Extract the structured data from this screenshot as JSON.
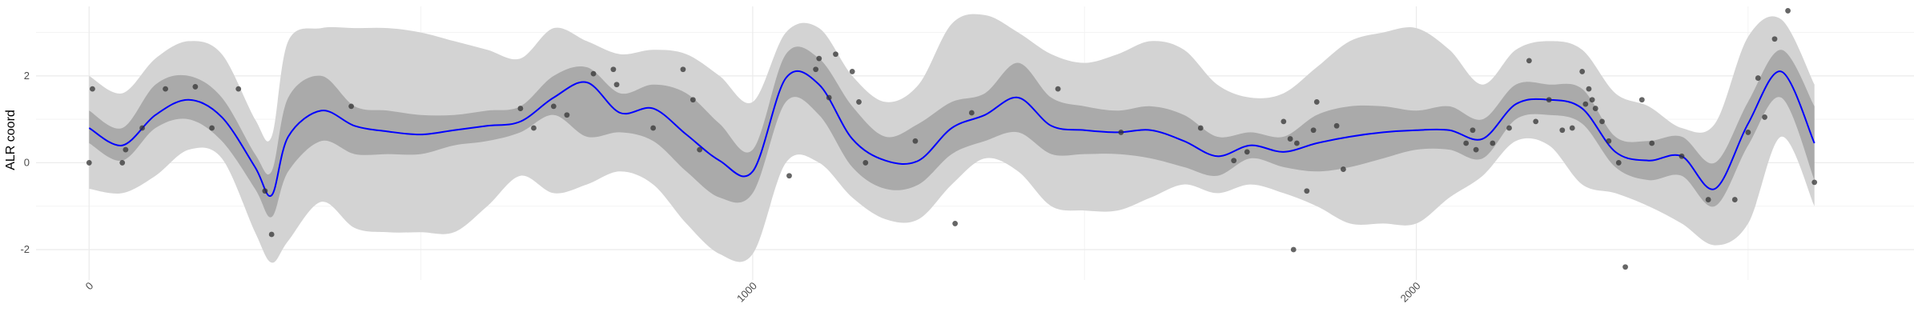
{
  "chart_data": {
    "type": "line",
    "title": "",
    "xlabel": "",
    "ylabel": "ALR coord",
    "xlim": [
      -80,
      2750
    ],
    "ylim": [
      -2.7,
      3.6
    ],
    "x_ticks": [
      0,
      1000,
      2000
    ],
    "x_tick_labels": [
      "0",
      "1000",
      "2000"
    ],
    "y_ticks": [
      -2,
      0,
      2
    ],
    "y_tick_labels": [
      "-2",
      "0",
      "2"
    ],
    "grid": true,
    "legend": "none",
    "colors": {
      "mean_line": "#0000ff",
      "inner_band": "#aaaaaa",
      "outer_band": "#d3d3d3",
      "points": "#333333",
      "grid": "#ebebeb"
    },
    "series": [
      {
        "type": "band",
        "role": "outer",
        "x": [
          0,
          50,
          100,
          150,
          200,
          250,
          275,
          300,
          350,
          400,
          450,
          500,
          550,
          600,
          650,
          700,
          750,
          800,
          850,
          900,
          950,
          1000,
          1050,
          1100,
          1150,
          1200,
          1250,
          1300,
          1350,
          1400,
          1450,
          1500,
          1550,
          1600,
          1650,
          1700,
          1750,
          1800,
          1850,
          1900,
          1950,
          2000,
          2050,
          2100,
          2150,
          2200,
          2250,
          2300,
          2350,
          2400,
          2450,
          2500,
          2550,
          2600
        ],
        "lower": [
          -0.6,
          -0.7,
          -0.3,
          0.3,
          0.1,
          -1.6,
          -2.3,
          -1.8,
          -0.9,
          -1.5,
          -1.6,
          -1.6,
          -1.6,
          -1.0,
          -0.3,
          -0.7,
          -0.5,
          -0.2,
          -0.5,
          -1.4,
          -2.1,
          -2.1,
          0.0,
          0.0,
          -0.8,
          -1.3,
          -1.3,
          -0.5,
          0.1,
          -0.2,
          -1.0,
          -1.1,
          -1.1,
          -0.8,
          -0.5,
          -0.7,
          -0.5,
          -0.7,
          -1.0,
          -1.4,
          -1.4,
          -1.4,
          -0.8,
          -0.3,
          0.5,
          0.4,
          -0.5,
          -0.7,
          -1.0,
          -1.4,
          -1.9,
          -1.4,
          0.6,
          -1.0
        ],
        "upper": [
          2.0,
          1.6,
          2.4,
          2.8,
          2.5,
          1.0,
          0.6,
          2.8,
          3.1,
          3.1,
          3.1,
          3.0,
          2.8,
          2.6,
          2.4,
          3.1,
          2.8,
          2.5,
          2.6,
          2.5,
          2.0,
          1.4,
          3.0,
          3.1,
          2.0,
          1.4,
          1.8,
          3.2,
          3.4,
          3.0,
          2.5,
          2.3,
          2.5,
          2.8,
          2.6,
          1.8,
          1.5,
          1.6,
          2.2,
          2.8,
          3.0,
          3.1,
          2.6,
          1.8,
          2.6,
          2.8,
          2.6,
          1.6,
          1.3,
          0.8,
          0.9,
          2.9,
          3.3,
          1.8
        ]
      },
      {
        "type": "band",
        "role": "inner",
        "x": [
          0,
          50,
          100,
          150,
          200,
          250,
          275,
          300,
          350,
          400,
          450,
          500,
          550,
          600,
          650,
          700,
          750,
          800,
          850,
          900,
          950,
          1000,
          1050,
          1100,
          1150,
          1200,
          1250,
          1300,
          1350,
          1400,
          1450,
          1500,
          1550,
          1600,
          1650,
          1700,
          1750,
          1800,
          1850,
          1900,
          1950,
          2000,
          2050,
          2100,
          2150,
          2200,
          2250,
          2300,
          2350,
          2400,
          2450,
          2500,
          2550,
          2600
        ],
        "lower": [
          0.45,
          0.05,
          0.8,
          1.0,
          0.5,
          -0.6,
          -1.25,
          -0.2,
          0.5,
          0.2,
          0.2,
          0.2,
          0.4,
          0.5,
          0.7,
          1.1,
          0.6,
          0.7,
          0.5,
          -0.2,
          -0.8,
          -0.7,
          1.4,
          1.1,
          -0.1,
          -0.6,
          -0.5,
          0.2,
          0.5,
          0.7,
          0.2,
          0.2,
          0.2,
          0.1,
          -0.1,
          -0.3,
          0.1,
          -0.1,
          -0.2,
          -0.1,
          0.1,
          0.3,
          0.3,
          0.1,
          1.0,
          1.1,
          0.9,
          -0.1,
          -0.4,
          -0.3,
          -1.0,
          0.4,
          1.5,
          -0.4
        ],
        "upper": [
          1.2,
          0.8,
          1.8,
          2.0,
          1.5,
          0.2,
          -0.2,
          1.5,
          2.0,
          1.3,
          1.2,
          1.1,
          1.1,
          1.2,
          1.3,
          2.0,
          2.2,
          1.6,
          1.8,
          1.6,
          0.9,
          0.3,
          2.5,
          2.4,
          1.3,
          0.6,
          0.9,
          1.4,
          1.6,
          2.3,
          1.5,
          1.3,
          1.2,
          1.3,
          1.1,
          0.6,
          0.7,
          0.6,
          1.1,
          1.3,
          1.3,
          1.2,
          1.3,
          1.0,
          1.8,
          1.8,
          1.7,
          0.6,
          0.5,
          0.6,
          0.0,
          1.4,
          2.6,
          1.3
        ]
      },
      {
        "type": "line",
        "role": "mean",
        "x": [
          0,
          50,
          100,
          150,
          200,
          250,
          275,
          300,
          350,
          400,
          450,
          500,
          550,
          600,
          650,
          700,
          750,
          800,
          850,
          900,
          950,
          1000,
          1050,
          1100,
          1150,
          1200,
          1250,
          1300,
          1350,
          1400,
          1450,
          1500,
          1550,
          1600,
          1650,
          1700,
          1750,
          1800,
          1850,
          1900,
          1950,
          2000,
          2050,
          2100,
          2150,
          2200,
          2250,
          2300,
          2350,
          2400,
          2450,
          2500,
          2550,
          2600
        ],
        "y": [
          0.8,
          0.4,
          1.1,
          1.45,
          1.05,
          -0.1,
          -0.75,
          0.6,
          1.2,
          0.85,
          0.72,
          0.65,
          0.75,
          0.85,
          0.95,
          1.5,
          1.85,
          1.15,
          1.25,
          0.65,
          0.05,
          -0.2,
          1.95,
          1.8,
          0.55,
          0.05,
          0.05,
          0.8,
          1.1,
          1.5,
          0.85,
          0.75,
          0.7,
          0.75,
          0.5,
          0.15,
          0.4,
          0.25,
          0.45,
          0.6,
          0.7,
          0.75,
          0.75,
          0.55,
          1.35,
          1.45,
          1.25,
          0.25,
          0.05,
          0.15,
          -0.6,
          0.9,
          2.1,
          0.45
        ]
      },
      {
        "type": "scatter",
        "role": "observations",
        "x": [
          0,
          5,
          50,
          55,
          80,
          115,
          160,
          185,
          225,
          265,
          275,
          395,
          650,
          670,
          700,
          720,
          760,
          790,
          795,
          850,
          895,
          910,
          920,
          1055,
          1095,
          1100,
          1115,
          1125,
          1150,
          1160,
          1170,
          1245,
          1305,
          1330,
          1460,
          1555,
          1675,
          1725,
          1745,
          1800,
          1810,
          1815,
          1820,
          1835,
          1845,
          1850,
          1880,
          1890,
          2075,
          2085,
          2090,
          2115,
          2140,
          2170,
          2180,
          2200,
          2220,
          2235,
          2250,
          2255,
          2260,
          2265,
          2270,
          2280,
          2290,
          2305,
          2315,
          2340,
          2355,
          2400,
          2440,
          2480,
          2500,
          2515,
          2525,
          2540,
          2560,
          2600
        ],
        "y": [
          0.0,
          1.7,
          0.0,
          0.3,
          0.8,
          1.7,
          1.75,
          0.8,
          1.7,
          -0.65,
          -1.65,
          1.3,
          1.25,
          0.8,
          1.3,
          1.1,
          2.05,
          2.15,
          1.8,
          0.8,
          2.15,
          1.45,
          0.3,
          -0.3,
          2.15,
          2.4,
          1.5,
          2.5,
          2.1,
          1.4,
          0.0,
          0.5,
          -1.4,
          1.15,
          1.7,
          0.7,
          0.8,
          0.05,
          0.25,
          0.95,
          0.55,
          -2.0,
          0.45,
          -0.65,
          0.75,
          1.4,
          0.85,
          -0.15,
          0.45,
          0.75,
          0.3,
          0.45,
          0.8,
          2.35,
          0.95,
          1.45,
          0.75,
          0.8,
          2.1,
          1.35,
          1.7,
          1.45,
          1.25,
          0.95,
          0.5,
          0.0,
          -2.4,
          1.45,
          0.45,
          0.15,
          -0.85,
          -0.85,
          0.7,
          1.95,
          1.05,
          2.85,
          3.5,
          -0.45
        ]
      }
    ]
  }
}
